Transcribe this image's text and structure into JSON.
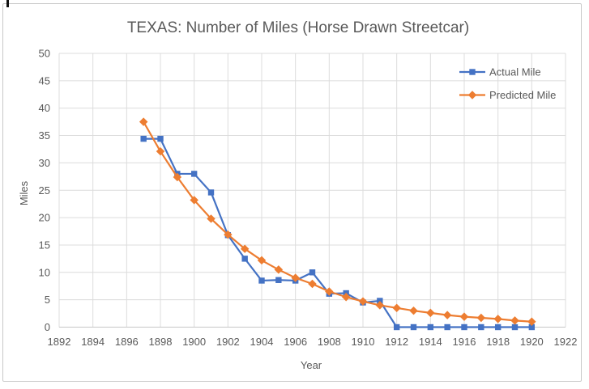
{
  "window": {
    "background": "#ffffff",
    "frame_border_color": "#c9c9c9"
  },
  "chart_data": {
    "type": "line",
    "title": "TEXAS: Number of Miles (Horse Drawn Streetcar)",
    "xlabel": "Year",
    "ylabel": "Miles",
    "xlim": [
      1892,
      1922
    ],
    "ylim": [
      0,
      50
    ],
    "x_ticks": [
      1892,
      1894,
      1896,
      1898,
      1900,
      1902,
      1904,
      1906,
      1908,
      1910,
      1912,
      1914,
      1916,
      1918,
      1920,
      1922
    ],
    "y_ticks": [
      0,
      5,
      10,
      15,
      20,
      25,
      30,
      35,
      40,
      45,
      50
    ],
    "grid": true,
    "gridline_color": "#dcdcdc",
    "axisline_color": "#c6c6c6",
    "text_color": "#595959",
    "legend_position": "inside-top-right",
    "x": [
      1897,
      1898,
      1899,
      1900,
      1901,
      1902,
      1903,
      1904,
      1905,
      1906,
      1907,
      1908,
      1909,
      1910,
      1911,
      1912,
      1913,
      1914,
      1915,
      1916,
      1917,
      1918,
      1919,
      1920
    ],
    "series": [
      {
        "name": "Actual Mile",
        "color": "#4472C4",
        "marker": "square",
        "values": [
          34.4,
          34.4,
          28,
          28,
          24.6,
          16.8,
          12.5,
          8.5,
          8.6,
          8.5,
          10,
          6.1,
          6.2,
          4.5,
          4.8,
          0,
          0,
          0,
          0,
          0,
          0,
          0,
          0,
          0
        ]
      },
      {
        "name": "Predicted Mile",
        "color": "#ED7D31",
        "marker": "diamond",
        "values": [
          37.5,
          32.1,
          27.4,
          23.2,
          19.8,
          16.9,
          14.3,
          12.2,
          10.5,
          9.0,
          7.9,
          6.5,
          5.5,
          4.7,
          4.0,
          3.5,
          3.0,
          2.6,
          2.2,
          1.9,
          1.7,
          1.5,
          1.2,
          1.0
        ]
      }
    ]
  }
}
